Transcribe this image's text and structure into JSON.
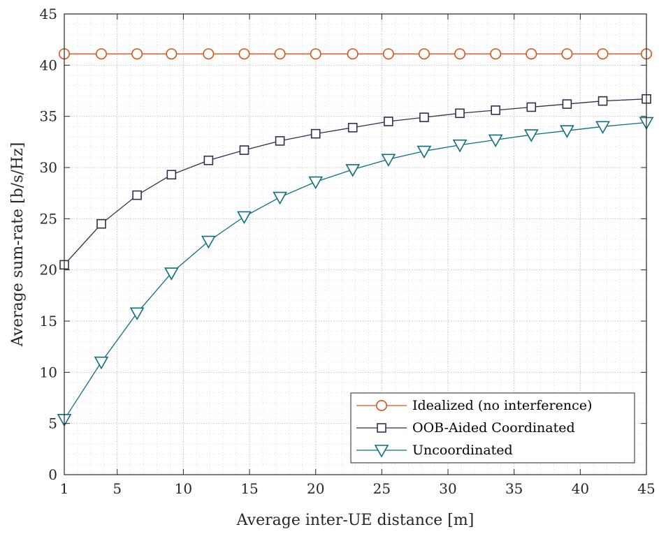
{
  "chart_data": {
    "type": "line",
    "title": "",
    "xlabel": "Average inter-UE distance [m]",
    "ylabel": "Average sum-rate [b/s/Hz]",
    "xlim": [
      1,
      45
    ],
    "ylim": [
      0,
      45
    ],
    "xticks": [
      1,
      5,
      10,
      15,
      20,
      25,
      30,
      35,
      40,
      45
    ],
    "yticks": [
      0,
      5,
      10,
      15,
      20,
      25,
      30,
      35,
      40,
      45
    ],
    "grid": true,
    "minor_grid": true,
    "legend_position": "bottom-right",
    "x": [
      1,
      3.8,
      6.5,
      9.1,
      11.9,
      14.6,
      17.3,
      20,
      22.8,
      25.5,
      28.2,
      30.9,
      33.6,
      36.3,
      39,
      41.7,
      45
    ],
    "series": [
      {
        "name": "Idealized (no interference)",
        "color": "#D95319",
        "marker": "circle",
        "values": [
          41.1,
          41.1,
          41.1,
          41.1,
          41.1,
          41.1,
          41.1,
          41.1,
          41.1,
          41.1,
          41.1,
          41.1,
          41.1,
          41.1,
          41.1,
          41.1,
          41.1
        ]
      },
      {
        "name": "OOB-Aided Coordinated",
        "color": "#2F2F4F",
        "marker": "square",
        "values": [
          20.5,
          24.5,
          27.3,
          29.3,
          30.7,
          31.7,
          32.6,
          33.3,
          33.9,
          34.5,
          34.9,
          35.3,
          35.6,
          35.9,
          36.2,
          36.5,
          36.7
        ]
      },
      {
        "name": "Uncoordinated",
        "color": "#0E6F7E",
        "marker": "triangle-down",
        "values": [
          5.4,
          11.0,
          15.8,
          19.7,
          22.8,
          25.2,
          27.1,
          28.6,
          29.8,
          30.8,
          31.6,
          32.2,
          32.7,
          33.2,
          33.6,
          34.0,
          34.4
        ]
      }
    ]
  }
}
